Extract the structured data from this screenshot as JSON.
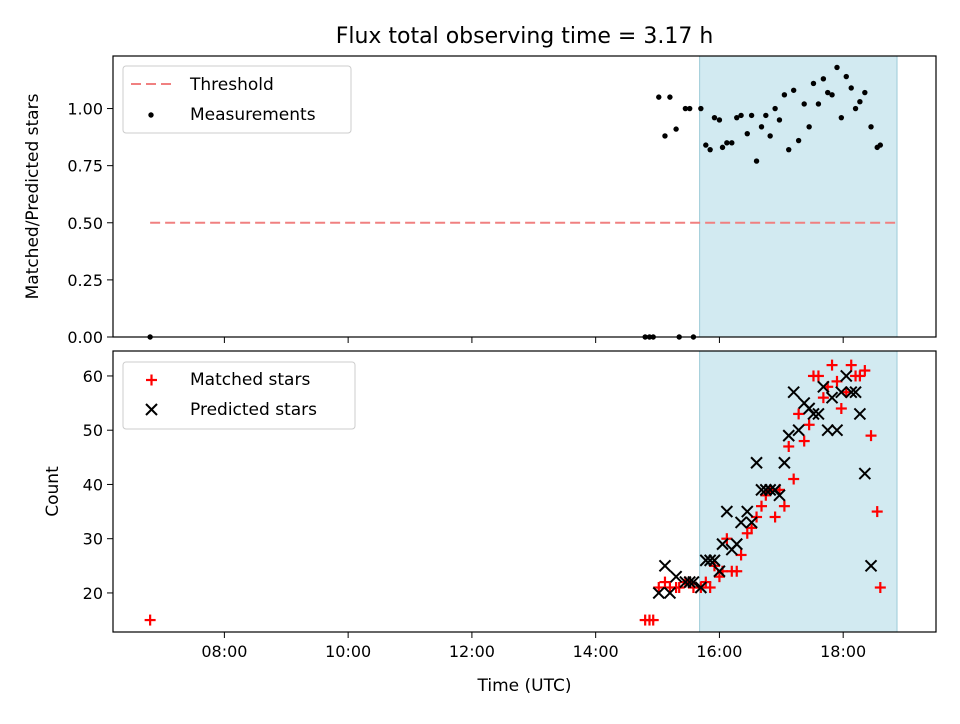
{
  "title": "Flux total observing time = 3.17 h",
  "chart_data": [
    {
      "type": "scatter",
      "panel": "top",
      "ylabel": "Matched/Predicted stars",
      "xlim": [
        6.2,
        19.5
      ],
      "ylim": [
        0.0,
        1.23
      ],
      "yticks": [
        0.0,
        0.25,
        0.5,
        0.75,
        1.0
      ],
      "ytick_labels": [
        "0.00",
        "0.25",
        "0.50",
        "0.75",
        "1.00"
      ],
      "xticks": [
        8,
        10,
        12,
        14,
        16,
        18
      ],
      "shaded_span": [
        15.68,
        18.87
      ],
      "shade_color": "#add8e6",
      "legend_position": "upper left",
      "threshold": {
        "name": "Threshold",
        "value": 0.5,
        "x_range": [
          6.8,
          18.87
        ],
        "color": "#f08080"
      },
      "series": [
        {
          "name": "Measurements",
          "color": "#000000",
          "points": [
            [
              6.8,
              0.0
            ],
            [
              14.8,
              0.0
            ],
            [
              14.87,
              0.0
            ],
            [
              14.93,
              0.0
            ],
            [
              15.02,
              1.05
            ],
            [
              15.12,
              0.88
            ],
            [
              15.2,
              1.05
            ],
            [
              15.3,
              0.91
            ],
            [
              15.35,
              0.0
            ],
            [
              15.45,
              1.0
            ],
            [
              15.52,
              1.0
            ],
            [
              15.58,
              0.0
            ],
            [
              15.7,
              1.0
            ],
            [
              15.78,
              0.84
            ],
            [
              15.85,
              0.82
            ],
            [
              15.92,
              0.96
            ],
            [
              16.0,
              0.95
            ],
            [
              16.05,
              0.83
            ],
            [
              16.12,
              0.85
            ],
            [
              16.2,
              0.85
            ],
            [
              16.28,
              0.96
            ],
            [
              16.35,
              0.97
            ],
            [
              16.45,
              0.89
            ],
            [
              16.52,
              0.97
            ],
            [
              16.6,
              0.77
            ],
            [
              16.68,
              0.92
            ],
            [
              16.75,
              0.97
            ],
            [
              16.82,
              0.88
            ],
            [
              16.9,
              1.0
            ],
            [
              16.97,
              0.95
            ],
            [
              17.05,
              1.06
            ],
            [
              17.12,
              0.82
            ],
            [
              17.2,
              1.08
            ],
            [
              17.28,
              0.86
            ],
            [
              17.37,
              1.02
            ],
            [
              17.45,
              0.92
            ],
            [
              17.52,
              1.11
            ],
            [
              17.6,
              1.02
            ],
            [
              17.68,
              1.13
            ],
            [
              17.75,
              1.07
            ],
            [
              17.82,
              1.06
            ],
            [
              17.9,
              1.18
            ],
            [
              17.97,
              0.96
            ],
            [
              18.05,
              1.14
            ],
            [
              18.13,
              1.09
            ],
            [
              18.2,
              1.0
            ],
            [
              18.27,
              1.03
            ],
            [
              18.35,
              1.07
            ],
            [
              18.45,
              0.92
            ],
            [
              18.55,
              0.83
            ],
            [
              18.6,
              0.84
            ]
          ]
        }
      ]
    },
    {
      "type": "scatter",
      "panel": "bottom",
      "xlabel": "Time (UTC)",
      "ylabel": "Count",
      "xlim": [
        6.2,
        19.5
      ],
      "ylim": [
        12.8,
        64.6
      ],
      "yticks": [
        20,
        30,
        40,
        50,
        60
      ],
      "xticks": [
        8,
        10,
        12,
        14,
        16,
        18
      ],
      "xtick_labels": [
        "08:00",
        "10:00",
        "12:00",
        "14:00",
        "16:00",
        "18:00"
      ],
      "shaded_span": [
        15.68,
        18.87
      ],
      "shade_color": "#add8e6",
      "legend_position": "upper left",
      "series": [
        {
          "name": "Matched stars",
          "marker": "+",
          "color": "#ff0000",
          "points": [
            [
              6.8,
              15
            ],
            [
              14.8,
              15
            ],
            [
              14.87,
              15
            ],
            [
              14.93,
              15
            ],
            [
              15.02,
              21
            ],
            [
              15.12,
              22
            ],
            [
              15.2,
              21
            ],
            [
              15.3,
              21
            ],
            [
              15.35,
              21
            ],
            [
              15.45,
              22
            ],
            [
              15.52,
              22
            ],
            [
              15.58,
              21
            ],
            [
              15.7,
              21
            ],
            [
              15.78,
              22
            ],
            [
              15.85,
              21
            ],
            [
              15.92,
              25
            ],
            [
              16.0,
              23
            ],
            [
              16.05,
              24
            ],
            [
              16.12,
              30
            ],
            [
              16.2,
              24
            ],
            [
              16.28,
              24
            ],
            [
              16.35,
              27
            ],
            [
              16.45,
              31
            ],
            [
              16.52,
              32
            ],
            [
              16.6,
              34
            ],
            [
              16.68,
              36
            ],
            [
              16.75,
              38
            ],
            [
              16.82,
              39
            ],
            [
              16.9,
              34
            ],
            [
              16.97,
              39
            ],
            [
              17.05,
              36
            ],
            [
              17.12,
              47
            ],
            [
              17.2,
              41
            ],
            [
              17.28,
              53
            ],
            [
              17.37,
              48
            ],
            [
              17.45,
              51
            ],
            [
              17.52,
              60
            ],
            [
              17.6,
              60
            ],
            [
              17.68,
              56
            ],
            [
              17.75,
              58
            ],
            [
              17.82,
              62
            ],
            [
              17.9,
              59
            ],
            [
              17.97,
              54
            ],
            [
              18.05,
              57
            ],
            [
              18.13,
              62
            ],
            [
              18.2,
              60
            ],
            [
              18.27,
              60
            ],
            [
              18.35,
              61
            ],
            [
              18.45,
              49
            ],
            [
              18.55,
              35
            ],
            [
              18.6,
              21
            ]
          ]
        },
        {
          "name": "Predicted stars",
          "marker": "x",
          "color": "#000000",
          "points": [
            [
              15.02,
              20
            ],
            [
              15.12,
              25
            ],
            [
              15.2,
              20
            ],
            [
              15.3,
              23
            ],
            [
              15.45,
              22
            ],
            [
              15.52,
              22
            ],
            [
              15.58,
              22
            ],
            [
              15.7,
              21
            ],
            [
              15.78,
              26
            ],
            [
              15.85,
              26
            ],
            [
              15.92,
              26
            ],
            [
              16.0,
              24
            ],
            [
              16.05,
              29
            ],
            [
              16.12,
              35
            ],
            [
              16.2,
              28
            ],
            [
              16.28,
              29
            ],
            [
              16.35,
              33
            ],
            [
              16.45,
              35
            ],
            [
              16.52,
              33
            ],
            [
              16.6,
              44
            ],
            [
              16.68,
              39
            ],
            [
              16.75,
              39
            ],
            [
              16.82,
              39
            ],
            [
              16.9,
              39
            ],
            [
              16.97,
              38
            ],
            [
              17.05,
              44
            ],
            [
              17.12,
              49
            ],
            [
              17.2,
              57
            ],
            [
              17.28,
              50
            ],
            [
              17.37,
              55
            ],
            [
              17.45,
              54
            ],
            [
              17.52,
              53
            ],
            [
              17.6,
              53
            ],
            [
              17.68,
              58
            ],
            [
              17.75,
              50
            ],
            [
              17.82,
              56
            ],
            [
              17.9,
              50
            ],
            [
              17.97,
              57
            ],
            [
              18.05,
              60
            ],
            [
              18.13,
              57
            ],
            [
              18.2,
              57
            ],
            [
              18.27,
              53
            ],
            [
              18.35,
              42
            ],
            [
              18.45,
              25
            ]
          ]
        }
      ]
    }
  ]
}
